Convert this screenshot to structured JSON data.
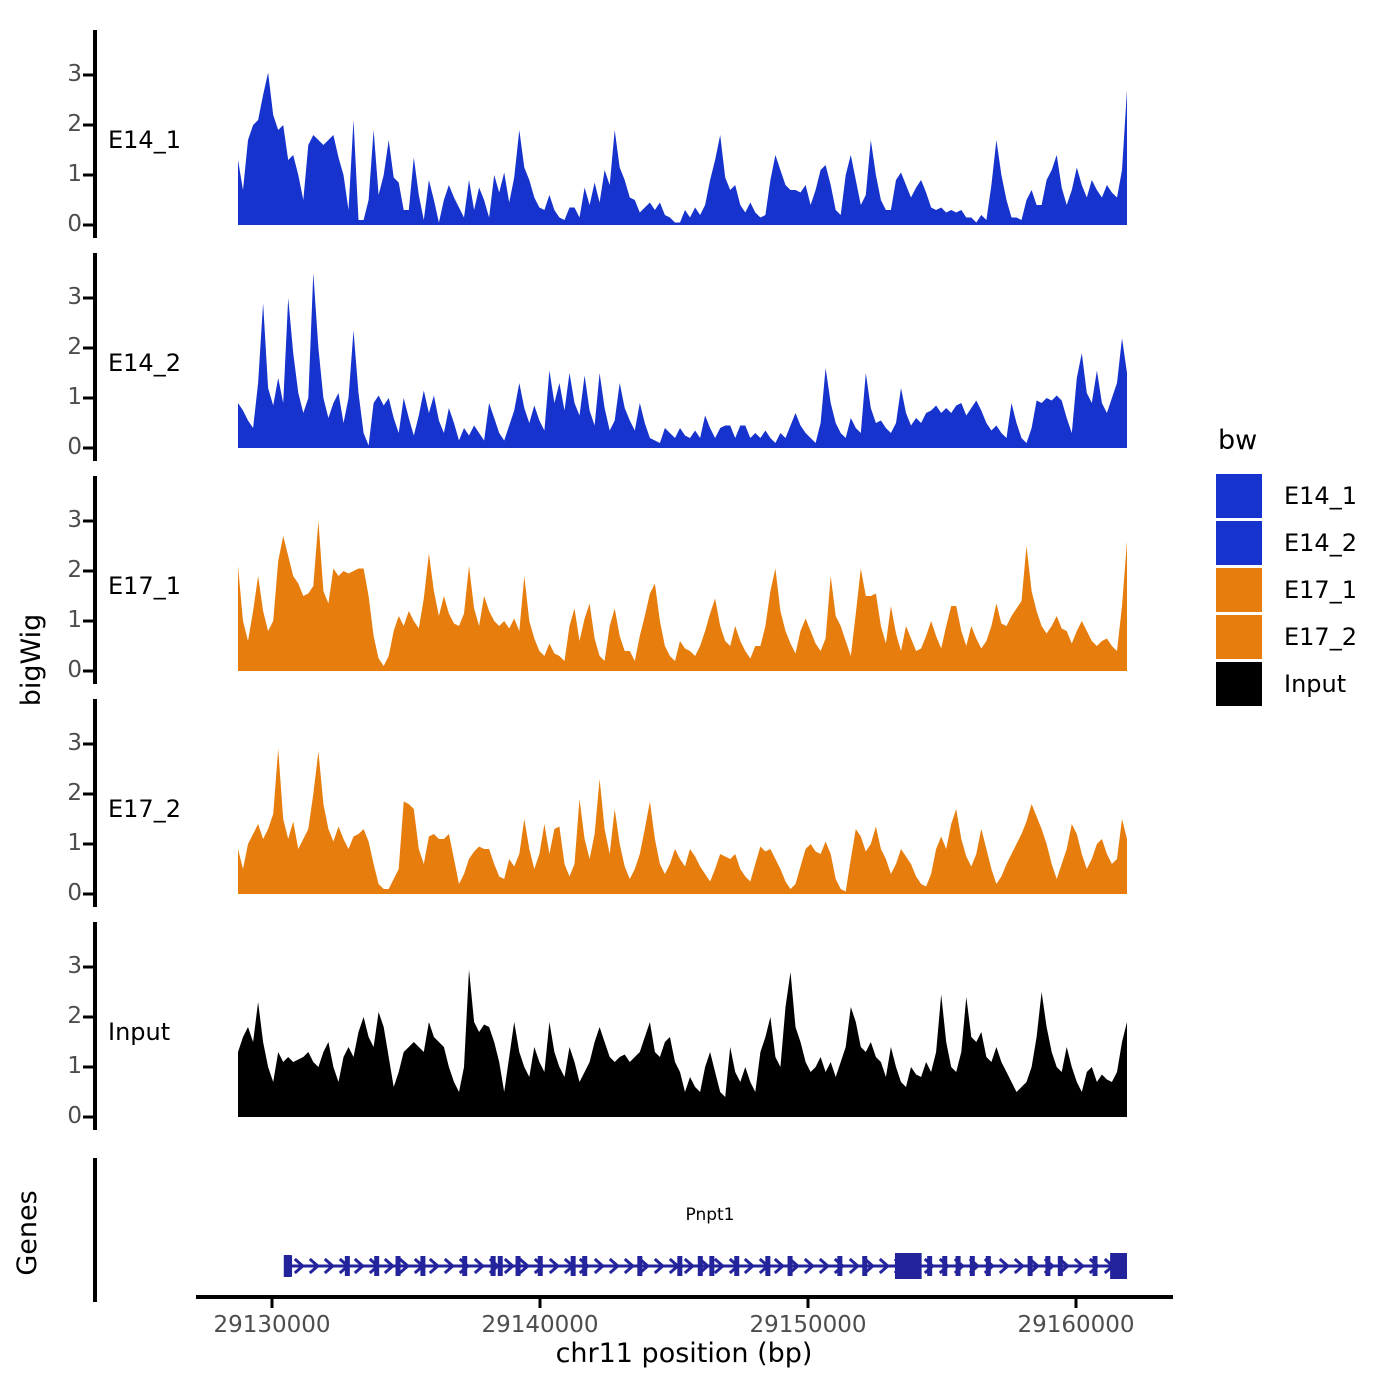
{
  "figure": {
    "background": "#FFFFFF",
    "tick_color": "#4D4D4D",
    "axis_color": "#000000"
  },
  "chart_data": {
    "type": "area",
    "title": "",
    "ylabel": "bigWig",
    "xlabel": "chr11 position (bp)",
    "region": {
      "chrom": "chr11",
      "start_bp": 29128730,
      "end_bp": 29161930,
      "step_bp": 187
    },
    "x_ticks": [
      {
        "bp": 29130000,
        "label": "29130000"
      },
      {
        "bp": 29140000,
        "label": "29140000"
      },
      {
        "bp": 29150000,
        "label": "29150000"
      },
      {
        "bp": 29160000,
        "label": "29160000"
      }
    ],
    "y_ticks": [
      "0",
      "1",
      "2",
      "3"
    ],
    "ylim": [
      0,
      3.9
    ],
    "legend_position": "right",
    "grid": false,
    "tracks": [
      {
        "name": "E14_1",
        "color": "#1733CD",
        "values": [
          1.3,
          0.7,
          1.7,
          2.0,
          2.1,
          2.6,
          3.05,
          2.2,
          1.9,
          2.0,
          1.3,
          1.4,
          1.0,
          0.5,
          1.6,
          1.8,
          1.7,
          1.6,
          1.7,
          1.8,
          1.35,
          1.0,
          0.3,
          2.1,
          0.1,
          0.1,
          0.5,
          1.9,
          0.6,
          1.0,
          1.7,
          0.95,
          0.85,
          0.3,
          0.3,
          1.35,
          0.6,
          0.1,
          0.9,
          0.5,
          0.05,
          0.5,
          0.8,
          0.55,
          0.35,
          0.15,
          0.9,
          0.3,
          0.75,
          0.5,
          0.15,
          1.0,
          0.65,
          1.05,
          0.45,
          0.95,
          1.9,
          1.15,
          0.9,
          0.55,
          0.35,
          0.3,
          0.6,
          0.3,
          0.15,
          0.1,
          0.35,
          0.35,
          0.15,
          0.75,
          0.4,
          0.85,
          0.45,
          1.1,
          0.8,
          1.9,
          1.15,
          0.9,
          0.55,
          0.5,
          0.25,
          0.35,
          0.45,
          0.3,
          0.45,
          0.2,
          0.15,
          0.05,
          0.05,
          0.3,
          0.15,
          0.35,
          0.2,
          0.4,
          0.9,
          1.3,
          1.8,
          0.95,
          0.7,
          0.8,
          0.4,
          0.25,
          0.45,
          0.25,
          0.15,
          0.2,
          0.9,
          1.4,
          1.1,
          0.8,
          0.7,
          0.7,
          0.65,
          0.8,
          0.4,
          0.7,
          1.1,
          1.2,
          0.8,
          0.3,
          0.2,
          1.0,
          1.4,
          0.9,
          0.4,
          0.6,
          1.7,
          1.0,
          0.5,
          0.3,
          0.3,
          0.9,
          1.05,
          0.8,
          0.55,
          0.75,
          0.9,
          0.65,
          0.35,
          0.3,
          0.35,
          0.25,
          0.3,
          0.25,
          0.3,
          0.15,
          0.15,
          0.05,
          0.2,
          0.1,
          0.8,
          1.7,
          1.0,
          0.5,
          0.15,
          0.15,
          0.1,
          0.5,
          0.7,
          0.4,
          0.4,
          0.9,
          1.1,
          1.4,
          0.75,
          0.4,
          0.7,
          1.15,
          0.8,
          0.55,
          0.9,
          0.7,
          0.55,
          0.8,
          0.65,
          0.55,
          1.1,
          2.7
        ]
      },
      {
        "name": "E14_2",
        "color": "#1733CD",
        "values": [
          0.9,
          0.75,
          0.55,
          0.4,
          1.3,
          2.9,
          1.2,
          0.85,
          1.4,
          0.9,
          3.0,
          1.9,
          1.1,
          0.7,
          1.0,
          3.5,
          2.0,
          1.0,
          0.6,
          0.9,
          1.1,
          0.5,
          1.0,
          2.35,
          1.1,
          0.3,
          0.05,
          0.9,
          1.05,
          0.85,
          1.0,
          0.6,
          0.3,
          1.0,
          0.6,
          0.25,
          0.65,
          1.15,
          0.7,
          1.05,
          0.55,
          0.3,
          0.8,
          0.5,
          0.15,
          0.4,
          0.25,
          0.45,
          0.3,
          0.15,
          0.9,
          0.6,
          0.3,
          0.15,
          0.45,
          0.75,
          1.3,
          0.8,
          0.5,
          0.85,
          0.55,
          0.35,
          1.55,
          0.9,
          1.3,
          0.75,
          1.5,
          0.9,
          0.65,
          1.45,
          0.75,
          0.45,
          1.5,
          0.8,
          0.35,
          0.55,
          1.3,
          0.8,
          0.55,
          0.35,
          0.9,
          0.5,
          0.2,
          0.15,
          0.1,
          0.4,
          0.3,
          0.2,
          0.4,
          0.25,
          0.2,
          0.35,
          0.2,
          0.65,
          0.4,
          0.2,
          0.4,
          0.45,
          0.45,
          0.2,
          0.45,
          0.45,
          0.2,
          0.3,
          0.2,
          0.35,
          0.2,
          0.1,
          0.3,
          0.2,
          0.45,
          0.7,
          0.45,
          0.3,
          0.2,
          0.1,
          0.5,
          1.6,
          0.9,
          0.5,
          0.3,
          0.2,
          0.6,
          0.4,
          0.3,
          1.5,
          0.8,
          0.5,
          0.55,
          0.4,
          0.3,
          0.5,
          1.2,
          0.7,
          0.45,
          0.6,
          0.5,
          0.7,
          0.75,
          0.85,
          0.7,
          0.8,
          0.7,
          0.85,
          0.9,
          0.65,
          0.8,
          0.95,
          0.75,
          0.5,
          0.35,
          0.45,
          0.3,
          0.2,
          0.9,
          0.5,
          0.2,
          0.1,
          0.4,
          0.95,
          0.9,
          1.0,
          0.95,
          1.05,
          0.95,
          0.6,
          0.3,
          1.4,
          1.9,
          1.1,
          0.9,
          1.55,
          0.9,
          0.7,
          1.0,
          1.3,
          2.2,
          1.5
        ]
      },
      {
        "name": "E17_1",
        "color": "#E67D0D",
        "values": [
          2.1,
          1.0,
          0.6,
          1.2,
          1.9,
          1.2,
          0.8,
          1.0,
          2.2,
          2.7,
          2.3,
          1.9,
          1.75,
          1.5,
          1.55,
          1.7,
          3.0,
          1.6,
          1.35,
          2.05,
          1.9,
          2.0,
          1.95,
          2.0,
          2.05,
          2.05,
          1.5,
          0.7,
          0.25,
          0.1,
          0.3,
          0.8,
          1.1,
          0.9,
          1.2,
          1.0,
          0.85,
          1.45,
          2.35,
          1.6,
          1.1,
          1.5,
          1.15,
          0.95,
          0.9,
          1.15,
          2.1,
          1.25,
          0.9,
          1.5,
          1.2,
          1.0,
          0.9,
          1.0,
          0.85,
          1.05,
          0.8,
          1.9,
          1.0,
          0.65,
          0.4,
          0.3,
          0.55,
          0.35,
          0.3,
          0.2,
          0.9,
          1.25,
          0.6,
          1.05,
          1.35,
          0.65,
          0.3,
          0.2,
          0.9,
          1.25,
          0.7,
          0.4,
          0.4,
          0.2,
          0.7,
          1.1,
          1.55,
          1.75,
          1.0,
          0.5,
          0.3,
          0.2,
          0.6,
          0.45,
          0.4,
          0.3,
          0.5,
          0.8,
          1.15,
          1.45,
          0.9,
          0.6,
          0.5,
          0.9,
          0.6,
          0.4,
          0.25,
          0.5,
          0.5,
          0.9,
          1.6,
          2.05,
          1.2,
          0.8,
          0.55,
          0.35,
          0.8,
          1.05,
          0.8,
          0.55,
          0.4,
          0.65,
          1.9,
          1.1,
          0.9,
          0.6,
          0.3,
          1.15,
          2.05,
          1.5,
          1.5,
          1.55,
          0.9,
          0.55,
          1.3,
          0.75,
          0.4,
          0.9,
          0.65,
          0.4,
          0.45,
          0.7,
          1.0,
          0.7,
          0.45,
          0.9,
          1.3,
          1.3,
          0.8,
          0.5,
          0.9,
          0.65,
          0.45,
          0.6,
          0.9,
          1.35,
          0.95,
          0.9,
          1.1,
          1.25,
          1.4,
          2.5,
          1.6,
          1.2,
          0.9,
          0.75,
          0.9,
          1.1,
          0.85,
          0.8,
          0.55,
          0.8,
          1.0,
          0.8,
          0.6,
          0.5,
          0.6,
          0.65,
          0.5,
          0.4,
          1.3,
          2.6
        ]
      },
      {
        "name": "E17_2",
        "color": "#E67D0D",
        "values": [
          0.9,
          0.5,
          1.0,
          1.2,
          1.4,
          1.1,
          1.3,
          1.6,
          2.9,
          1.5,
          1.1,
          1.45,
          0.9,
          1.1,
          1.3,
          2.0,
          2.85,
          1.8,
          1.3,
          1.05,
          1.35,
          1.1,
          0.9,
          1.15,
          1.2,
          1.3,
          1.05,
          0.6,
          0.2,
          0.1,
          0.1,
          0.3,
          0.5,
          1.85,
          1.8,
          1.7,
          0.9,
          0.6,
          1.15,
          1.2,
          1.1,
          1.1,
          1.2,
          0.7,
          0.2,
          0.4,
          0.7,
          0.85,
          0.95,
          0.9,
          0.9,
          0.6,
          0.35,
          0.3,
          0.7,
          0.55,
          0.8,
          1.5,
          0.9,
          0.5,
          0.8,
          1.4,
          0.8,
          1.3,
          1.35,
          0.6,
          0.35,
          0.6,
          1.9,
          1.1,
          0.7,
          1.2,
          2.3,
          1.3,
          0.8,
          1.7,
          1.0,
          0.55,
          0.3,
          0.5,
          0.8,
          1.3,
          1.85,
          1.1,
          0.6,
          0.4,
          0.6,
          0.9,
          0.7,
          0.55,
          0.9,
          0.75,
          0.55,
          0.4,
          0.25,
          0.5,
          0.8,
          0.75,
          0.7,
          0.8,
          0.5,
          0.35,
          0.25,
          0.6,
          0.95,
          0.85,
          0.9,
          0.7,
          0.5,
          0.25,
          0.1,
          0.2,
          0.55,
          0.9,
          1.0,
          0.85,
          0.8,
          1.05,
          0.8,
          0.3,
          0.1,
          0.05,
          0.7,
          1.3,
          1.15,
          0.85,
          1.0,
          1.35,
          0.9,
          0.7,
          0.4,
          0.6,
          0.9,
          0.75,
          0.6,
          0.35,
          0.2,
          0.15,
          0.4,
          0.9,
          1.15,
          0.9,
          1.4,
          1.7,
          1.1,
          0.75,
          0.55,
          0.8,
          1.3,
          0.9,
          0.5,
          0.2,
          0.35,
          0.6,
          0.8,
          1.0,
          1.2,
          1.45,
          1.8,
          1.55,
          1.3,
          1.0,
          0.6,
          0.3,
          0.6,
          0.9,
          1.4,
          1.2,
          0.8,
          0.5,
          0.7,
          1.0,
          1.1,
          0.8,
          0.6,
          0.7,
          1.5,
          1.1
        ]
      },
      {
        "name": "Input",
        "color": "#000000",
        "values": [
          1.3,
          1.6,
          1.8,
          1.5,
          2.3,
          1.5,
          1.0,
          0.7,
          1.3,
          1.1,
          1.2,
          1.1,
          1.15,
          1.2,
          1.3,
          1.1,
          1.0,
          1.3,
          1.5,
          1.0,
          0.7,
          1.2,
          1.4,
          1.2,
          1.7,
          2.0,
          1.6,
          1.4,
          2.1,
          1.8,
          1.2,
          0.6,
          0.9,
          1.3,
          1.4,
          1.5,
          1.4,
          1.3,
          1.9,
          1.6,
          1.5,
          1.4,
          1.0,
          0.7,
          0.5,
          1.0,
          2.95,
          1.9,
          1.7,
          1.85,
          1.8,
          1.5,
          1.1,
          0.5,
          1.2,
          1.9,
          1.3,
          1.0,
          0.8,
          1.4,
          1.1,
          0.9,
          1.9,
          1.3,
          1.0,
          0.8,
          1.4,
          1.1,
          0.7,
          0.9,
          1.1,
          1.5,
          1.8,
          1.5,
          1.2,
          1.1,
          1.2,
          1.25,
          1.1,
          1.2,
          1.3,
          1.6,
          1.9,
          1.3,
          1.2,
          1.5,
          1.6,
          1.1,
          0.9,
          0.5,
          0.8,
          0.6,
          0.5,
          1.0,
          1.3,
          0.9,
          0.5,
          0.4,
          1.4,
          0.9,
          0.7,
          1.0,
          0.7,
          0.5,
          1.3,
          1.6,
          2.0,
          1.2,
          1.0,
          2.2,
          2.9,
          1.8,
          1.5,
          1.1,
          0.9,
          1.0,
          1.2,
          0.9,
          1.1,
          0.8,
          1.1,
          1.4,
          2.2,
          1.9,
          1.4,
          1.3,
          1.5,
          1.2,
          1.1,
          0.8,
          1.4,
          1.0,
          0.7,
          0.6,
          1.0,
          0.85,
          0.8,
          1.1,
          0.9,
          1.3,
          2.45,
          1.5,
          1.0,
          0.9,
          1.3,
          2.4,
          1.6,
          1.5,
          1.7,
          1.2,
          1.1,
          1.4,
          1.1,
          0.9,
          0.7,
          0.5,
          0.6,
          0.7,
          1.0,
          1.6,
          2.5,
          1.8,
          1.3,
          1.0,
          0.9,
          1.4,
          1.0,
          0.7,
          0.5,
          0.9,
          1.0,
          0.7,
          0.85,
          0.75,
          0.7,
          0.9,
          1.5,
          1.9
        ]
      }
    ],
    "gene_track": {
      "label": "Genes",
      "gene": {
        "name": "Pnpt1",
        "strand": "+",
        "color": "#23239C",
        "start_frac": 0.056,
        "end_frac": 1.0,
        "exon_fracs": [
          0.058,
          0.123,
          0.156,
          0.18,
          0.208,
          0.255,
          0.287,
          0.295,
          0.315,
          0.34,
          0.377,
          0.39,
          0.452,
          0.497,
          0.52,
          0.533,
          0.561,
          0.596,
          0.621,
          0.677,
          0.705,
          0.778,
          0.795,
          0.81,
          0.826,
          0.844,
          0.891,
          0.911,
          0.925,
          0.964
        ],
        "wide_exons": [
          [
            0.739,
            0.769
          ],
          [
            0.981,
            1.0
          ]
        ]
      }
    },
    "legend": {
      "title": "bw",
      "entries": [
        {
          "label": "E14_1",
          "color": "#1733CD"
        },
        {
          "label": "E14_2",
          "color": "#1733CD"
        },
        {
          "label": "E17_1",
          "color": "#E67D0D"
        },
        {
          "label": "E17_2",
          "color": "#E67D0D"
        },
        {
          "label": "Input",
          "color": "#000000"
        }
      ]
    }
  }
}
